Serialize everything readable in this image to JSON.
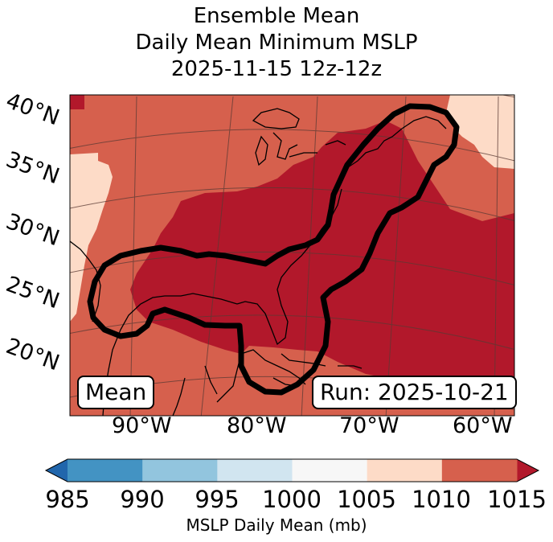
{
  "title": {
    "line1": "Ensemble Mean",
    "line2": "Daily Mean Minimum MSLP",
    "line3": "2025-11-15 12z-12z"
  },
  "map": {
    "lat_labels": [
      "40°N",
      "35°N",
      "30°N",
      "25°N",
      "20°N"
    ],
    "lon_labels": [
      "90°W",
      "80°W",
      "70°W",
      "60°W"
    ],
    "mean_tag": "Mean",
    "run_tag": "Run: 2025-10-21",
    "colors": {
      "c1000_1005": "#f7f7f7",
      "c1005_1010": "#fddbc7",
      "c1010_1015": "#d6604d",
      "c_gt_1015": "#b2182b"
    },
    "contour_color": "#000000"
  },
  "colorbar": {
    "label": "MSLP Daily Mean (mb)",
    "ticks": [
      "985",
      "990",
      "995",
      "1000",
      "1005",
      "1010",
      "1015"
    ],
    "colors": [
      "#4393c3",
      "#92c5de",
      "#d1e5f0",
      "#f7f7f7",
      "#fddbc7",
      "#d6604d"
    ],
    "under_color": "#2166ac",
    "over_color": "#b2182b"
  }
}
